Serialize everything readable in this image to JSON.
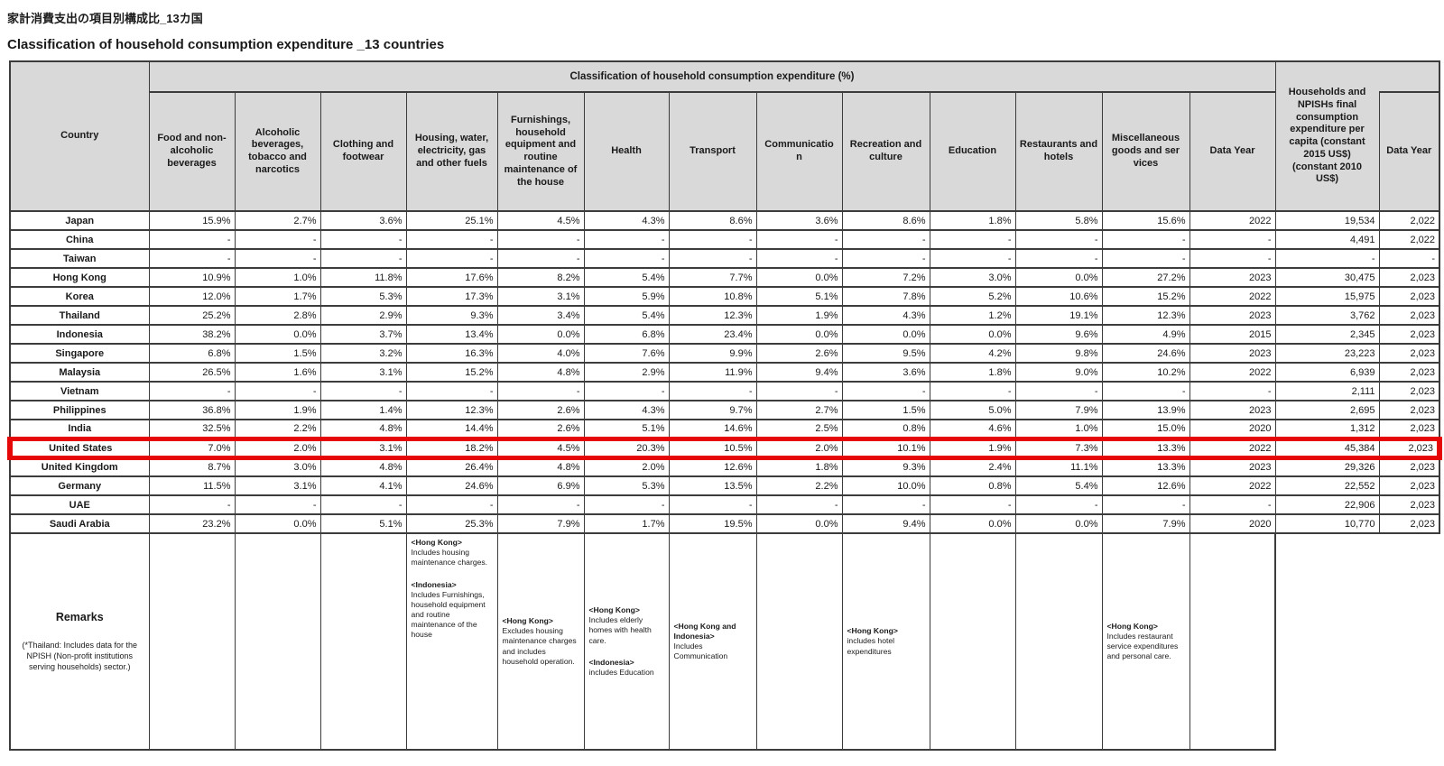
{
  "page": {
    "title_ja": "家計消費支出の項目別構成比_13カ国",
    "title_en": "Classification of household consumption expenditure _13 countries"
  },
  "colors": {
    "header_bg": "#d9d9d9",
    "grid_line": "#3c3c3c",
    "highlight_box": "#e60808"
  },
  "table": {
    "group_header": "Classification of household consumption expenditure  (%)",
    "columns": [
      "Country",
      "Food and non-alcoholic beverages",
      "Alcoholic beverages, tobacco and narcotics",
      "Clothing and footwear",
      "Housing, water, electricity, gas and other fuels",
      "Furnishings, household equipment and routine maintenance of the house",
      "Health",
      "Transport",
      "Communication",
      "Recreation and culture",
      "Education",
      "Restaurants and hotels",
      "Miscellaneous goods and services",
      "Data Year",
      "Households and NPISHs final consumption expenditure per capita (constant 2015 US$) (constant 2010 US$)",
      "Data Year"
    ],
    "rows": [
      {
        "country": "Japan",
        "highlight": false,
        "values": [
          "15.9%",
          "2.7%",
          "3.6%",
          "25.1%",
          "4.5%",
          "4.3%",
          "8.6%",
          "3.6%",
          "8.6%",
          "1.8%",
          "5.8%",
          "15.6%",
          "2022",
          "19,534",
          "2,022"
        ]
      },
      {
        "country": "China",
        "highlight": false,
        "values": [
          "-",
          "-",
          "-",
          "-",
          "-",
          "-",
          "-",
          "-",
          "-",
          "-",
          "-",
          "-",
          "-",
          "4,491",
          "2,022"
        ]
      },
      {
        "country": "Taiwan",
        "highlight": false,
        "values": [
          "-",
          "-",
          "-",
          "-",
          "-",
          "-",
          "-",
          "-",
          "-",
          "-",
          "-",
          "-",
          "-",
          "-",
          "-"
        ]
      },
      {
        "country": "Hong Kong",
        "highlight": false,
        "values": [
          "10.9%",
          "1.0%",
          "11.8%",
          "17.6%",
          "8.2%",
          "5.4%",
          "7.7%",
          "0.0%",
          "7.2%",
          "3.0%",
          "0.0%",
          "27.2%",
          "2023",
          "30,475",
          "2,023"
        ]
      },
      {
        "country": "Korea",
        "highlight": false,
        "values": [
          "12.0%",
          "1.7%",
          "5.3%",
          "17.3%",
          "3.1%",
          "5.9%",
          "10.8%",
          "5.1%",
          "7.8%",
          "5.2%",
          "10.6%",
          "15.2%",
          "2022",
          "15,975",
          "2,023"
        ]
      },
      {
        "country": "Thailand",
        "highlight": false,
        "values": [
          "25.2%",
          "2.8%",
          "2.9%",
          "9.3%",
          "3.4%",
          "5.4%",
          "12.3%",
          "1.9%",
          "4.3%",
          "1.2%",
          "19.1%",
          "12.3%",
          "2023",
          "3,762",
          "2,023"
        ]
      },
      {
        "country": "Indonesia",
        "highlight": false,
        "values": [
          "38.2%",
          "0.0%",
          "3.7%",
          "13.4%",
          "0.0%",
          "6.8%",
          "23.4%",
          "0.0%",
          "0.0%",
          "0.0%",
          "9.6%",
          "4.9%",
          "2015",
          "2,345",
          "2,023"
        ]
      },
      {
        "country": "Singapore",
        "highlight": false,
        "values": [
          "6.8%",
          "1.5%",
          "3.2%",
          "16.3%",
          "4.0%",
          "7.6%",
          "9.9%",
          "2.6%",
          "9.5%",
          "4.2%",
          "9.8%",
          "24.6%",
          "2023",
          "23,223",
          "2,023"
        ]
      },
      {
        "country": "Malaysia",
        "highlight": false,
        "values": [
          "26.5%",
          "1.6%",
          "3.1%",
          "15.2%",
          "4.8%",
          "2.9%",
          "11.9%",
          "9.4%",
          "3.6%",
          "1.8%",
          "9.0%",
          "10.2%",
          "2022",
          "6,939",
          "2,023"
        ]
      },
      {
        "country": "Vietnam",
        "highlight": false,
        "values": [
          "-",
          "-",
          "-",
          "-",
          "-",
          "-",
          "-",
          "-",
          "-",
          "-",
          "-",
          "-",
          "-",
          "2,111",
          "2,023"
        ]
      },
      {
        "country": "Philippines",
        "highlight": false,
        "values": [
          "36.8%",
          "1.9%",
          "1.4%",
          "12.3%",
          "2.6%",
          "4.3%",
          "9.7%",
          "2.7%",
          "1.5%",
          "5.0%",
          "7.9%",
          "13.9%",
          "2023",
          "2,695",
          "2,023"
        ]
      },
      {
        "country": "India",
        "highlight": false,
        "values": [
          "32.5%",
          "2.2%",
          "4.8%",
          "14.4%",
          "2.6%",
          "5.1%",
          "14.6%",
          "2.5%",
          "0.8%",
          "4.6%",
          "1.0%",
          "15.0%",
          "2020",
          "1,312",
          "2,023"
        ]
      },
      {
        "country": "United States",
        "highlight": true,
        "values": [
          "7.0%",
          "2.0%",
          "3.1%",
          "18.2%",
          "4.5%",
          "20.3%",
          "10.5%",
          "2.0%",
          "10.1%",
          "1.9%",
          "7.3%",
          "13.3%",
          "2022",
          "45,384",
          "2,023"
        ]
      },
      {
        "country": "United Kingdom",
        "highlight": false,
        "values": [
          "8.7%",
          "3.0%",
          "4.8%",
          "26.4%",
          "4.8%",
          "2.0%",
          "12.6%",
          "1.8%",
          "9.3%",
          "2.4%",
          "11.1%",
          "13.3%",
          "2023",
          "29,326",
          "2,023"
        ]
      },
      {
        "country": "Germany",
        "highlight": false,
        "values": [
          "11.5%",
          "3.1%",
          "4.1%",
          "24.6%",
          "6.9%",
          "5.3%",
          "13.5%",
          "2.2%",
          "10.0%",
          "0.8%",
          "5.4%",
          "12.6%",
          "2022",
          "22,552",
          "2,023"
        ]
      },
      {
        "country": "UAE",
        "highlight": false,
        "values": [
          "-",
          "-",
          "-",
          "-",
          "-",
          "-",
          "-",
          "-",
          "-",
          "-",
          "-",
          "-",
          "-",
          "22,906",
          "2,023"
        ]
      },
      {
        "country": "Saudi Arabia",
        "highlight": false,
        "values": [
          "23.2%",
          "0.0%",
          "5.1%",
          "25.3%",
          "7.9%",
          "1.7%",
          "19.5%",
          "0.0%",
          "9.4%",
          "0.0%",
          "0.0%",
          "7.9%",
          "2020",
          "10,770",
          "2,023"
        ]
      }
    ]
  },
  "remarks": {
    "label": "Remarks",
    "note": "(*Thailand: Includes data for the NPISH (Non-profit institutions serving households) sector.)",
    "housing": [
      {
        "tag": "<Hong Kong>",
        "text": "Includes housing maintenance charges."
      },
      {
        "tag": "<Indonesia>",
        "text": "Includes Furnishings, household equipment and routine maintenance of the house"
      }
    ],
    "furnishings": [
      {
        "tag": "<Hong Kong>",
        "text": "Excludes housing maintenance charges and includes household operation."
      }
    ],
    "health": [
      {
        "tag": "<Hong Kong>",
        "text": "Includes elderly homes with health care."
      },
      {
        "tag": "<Indonesia>",
        "text": "includes Education"
      }
    ],
    "transport": [
      {
        "tag": "<Hong Kong and Indonesia>",
        "text": "Includes Communication"
      }
    ],
    "recreation": [
      {
        "tag": "<Hong Kong>",
        "text": "includes hotel expenditures"
      }
    ],
    "miscellaneous": [
      {
        "tag": "<Hong Kong>",
        "text": "Includes restaurant service expenditures and personal care."
      }
    ]
  }
}
